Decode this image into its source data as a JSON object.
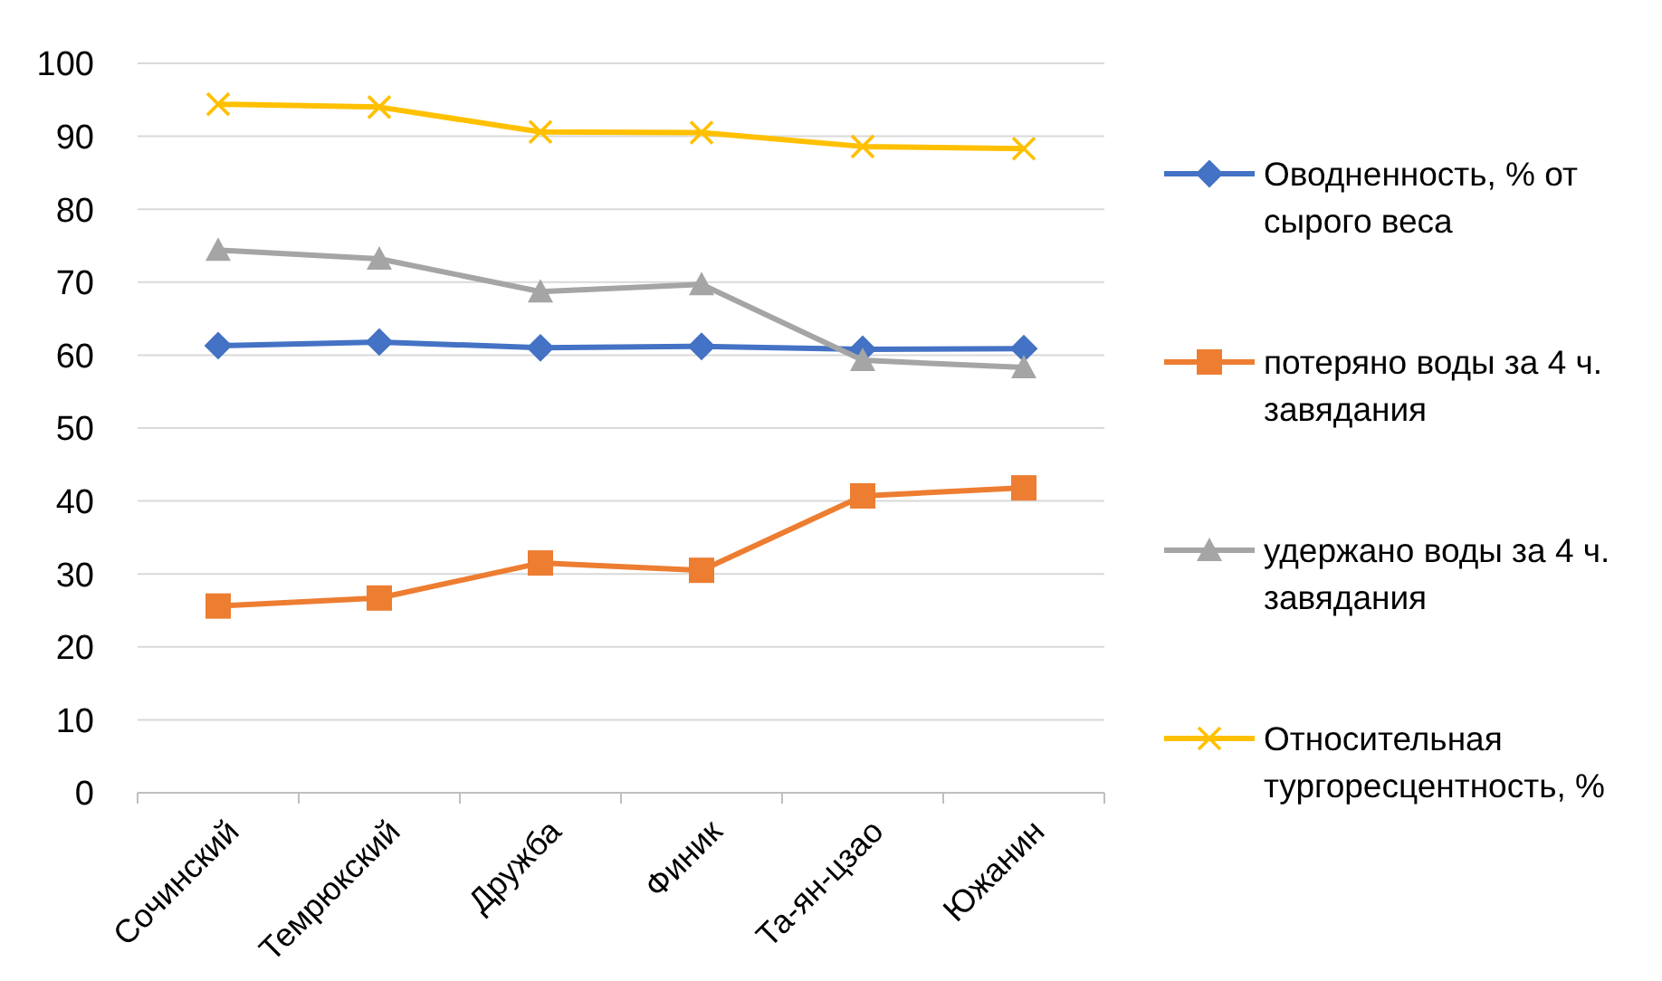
{
  "chart_data": {
    "type": "line",
    "categories": [
      "Сочинский",
      "Темрюкский",
      "Дружба",
      "Финик",
      "Та-ян-цзао",
      "Южанин"
    ],
    "ylim": [
      0,
      100
    ],
    "yticks": [
      0,
      10,
      20,
      30,
      40,
      50,
      60,
      70,
      80,
      90,
      100
    ],
    "grid": "y",
    "legend": "right",
    "series": [
      {
        "name": "Оводненность, % от сырого веса",
        "color": "#4472c4",
        "marker": "diamond",
        "values": [
          61.3,
          61.8,
          61.0,
          61.2,
          60.8,
          60.9
        ]
      },
      {
        "name": "потеряно воды за 4 ч. завядания",
        "color": "#ed7d31",
        "marker": "square",
        "values": [
          25.6,
          26.7,
          31.5,
          30.5,
          40.7,
          41.8
        ]
      },
      {
        "name": "удержано воды за 4 ч. завядания",
        "color": "#a5a5a5",
        "marker": "triangle",
        "values": [
          74.4,
          73.2,
          68.7,
          69.7,
          59.3,
          58.3
        ]
      },
      {
        "name": "Относительная тургоресцентность, %",
        "color": "#ffc000",
        "marker": "cross",
        "values": [
          94.4,
          94.0,
          90.6,
          90.5,
          88.6,
          88.3
        ]
      }
    ]
  }
}
